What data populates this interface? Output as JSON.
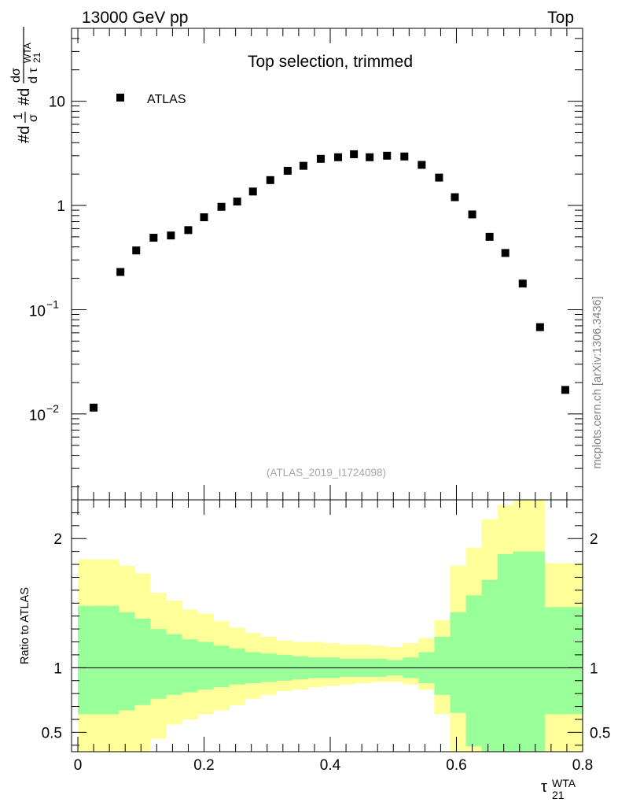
{
  "header": {
    "left": "13000 GeV pp",
    "right": "Top"
  },
  "side_label": "mcplots.cern.ch [arXiv:1306.3436]",
  "chart_data": [
    {
      "type": "scatter",
      "title": "Top selection, trimmed",
      "watermark": "(ATLAS_2019_I1724098)",
      "ylabel": "#d1/σ #d dσ/d τ21 WTA",
      "yscale": "log",
      "ylim": [
        0.0015,
        50
      ],
      "xlim": [
        -0.01,
        0.8
      ],
      "yticks": [
        {
          "value": 0.01,
          "base": "10",
          "exp": "−2"
        },
        {
          "value": 0.1,
          "base": "10",
          "exp": "−1"
        },
        {
          "value": 1,
          "label": "1"
        },
        {
          "value": 10,
          "label": "10"
        }
      ],
      "legend": {
        "label": "ATLAS",
        "position": "top-left"
      },
      "series": [
        {
          "name": "ATLAS",
          "x": [
            0.025,
            0.0675,
            0.0925,
            0.12,
            0.1475,
            0.175,
            0.2,
            0.2275,
            0.2525,
            0.2775,
            0.305,
            0.3325,
            0.3575,
            0.385,
            0.4125,
            0.4375,
            0.4625,
            0.49,
            0.5175,
            0.545,
            0.5725,
            0.5975,
            0.625,
            0.6525,
            0.6775,
            0.705,
            0.7325,
            0.7725
          ],
          "values": [
            0.0115,
            0.23,
            0.37,
            0.49,
            0.515,
            0.58,
            0.77,
            0.97,
            1.09,
            1.36,
            1.75,
            2.15,
            2.4,
            2.8,
            2.9,
            3.1,
            2.9,
            3.0,
            2.95,
            2.45,
            1.85,
            1.2,
            0.82,
            0.5,
            0.35,
            0.178,
            0.068,
            0.017
          ]
        }
      ]
    },
    {
      "type": "area",
      "ylabel": "Ratio to ATLAS",
      "xlabel": "τ21 WTA",
      "ylim": [
        0.35,
        2.3
      ],
      "xlim": [
        -0.01,
        0.8
      ],
      "xticks": [
        "0",
        "0.2",
        "0.4",
        "0.6",
        "0.8"
      ],
      "xtick_values": [
        0,
        0.2,
        0.4,
        0.6,
        0.8
      ],
      "yticks": [
        "0.5",
        "1",
        "2"
      ],
      "ytick_values": [
        0.5,
        1,
        2
      ],
      "reference_line": 1,
      "bin_edges": [
        0,
        0.04,
        0.065,
        0.09,
        0.115,
        0.14,
        0.165,
        0.19,
        0.215,
        0.24,
        0.265,
        0.29,
        0.315,
        0.34,
        0.365,
        0.39,
        0.415,
        0.44,
        0.465,
        0.49,
        0.515,
        0.54,
        0.565,
        0.59,
        0.615,
        0.64,
        0.665,
        0.69,
        0.74,
        0.8
      ],
      "bands": [
        {
          "name": "yellow",
          "color": "#ffff99",
          "upper": [
            1.84,
            1.84,
            1.79,
            1.73,
            1.58,
            1.52,
            1.45,
            1.42,
            1.36,
            1.31,
            1.27,
            1.24,
            1.21,
            1.2,
            1.2,
            1.19,
            1.18,
            1.18,
            1.17,
            1.16,
            1.19,
            1.23,
            1.37,
            1.79,
            1.93,
            2.15,
            2.26,
            2.5,
            1.81
          ],
          "lower": [
            0.2,
            0.2,
            0.2,
            0.32,
            0.45,
            0.56,
            0.6,
            0.64,
            0.67,
            0.71,
            0.76,
            0.79,
            0.82,
            0.83,
            0.85,
            0.86,
            0.87,
            0.88,
            0.89,
            0.89,
            0.87,
            0.83,
            0.64,
            0.26,
            0.22,
            0.15,
            0.1,
            0.12,
            0.26
          ]
        },
        {
          "name": "green",
          "color": "#99ff99",
          "upper": [
            1.48,
            1.48,
            1.43,
            1.38,
            1.3,
            1.26,
            1.22,
            1.2,
            1.17,
            1.15,
            1.12,
            1.11,
            1.1,
            1.09,
            1.08,
            1.08,
            1.07,
            1.07,
            1.07,
            1.06,
            1.08,
            1.12,
            1.24,
            1.43,
            1.56,
            1.68,
            1.88,
            1.9,
            1.47
          ],
          "lower": [
            0.64,
            0.64,
            0.67,
            0.71,
            0.76,
            0.79,
            0.81,
            0.83,
            0.85,
            0.87,
            0.88,
            0.89,
            0.9,
            0.91,
            0.92,
            0.92,
            0.93,
            0.93,
            0.93,
            0.94,
            0.92,
            0.88,
            0.79,
            0.65,
            0.39,
            0.2,
            0.1,
            0.1,
            0.64
          ]
        }
      ]
    }
  ]
}
